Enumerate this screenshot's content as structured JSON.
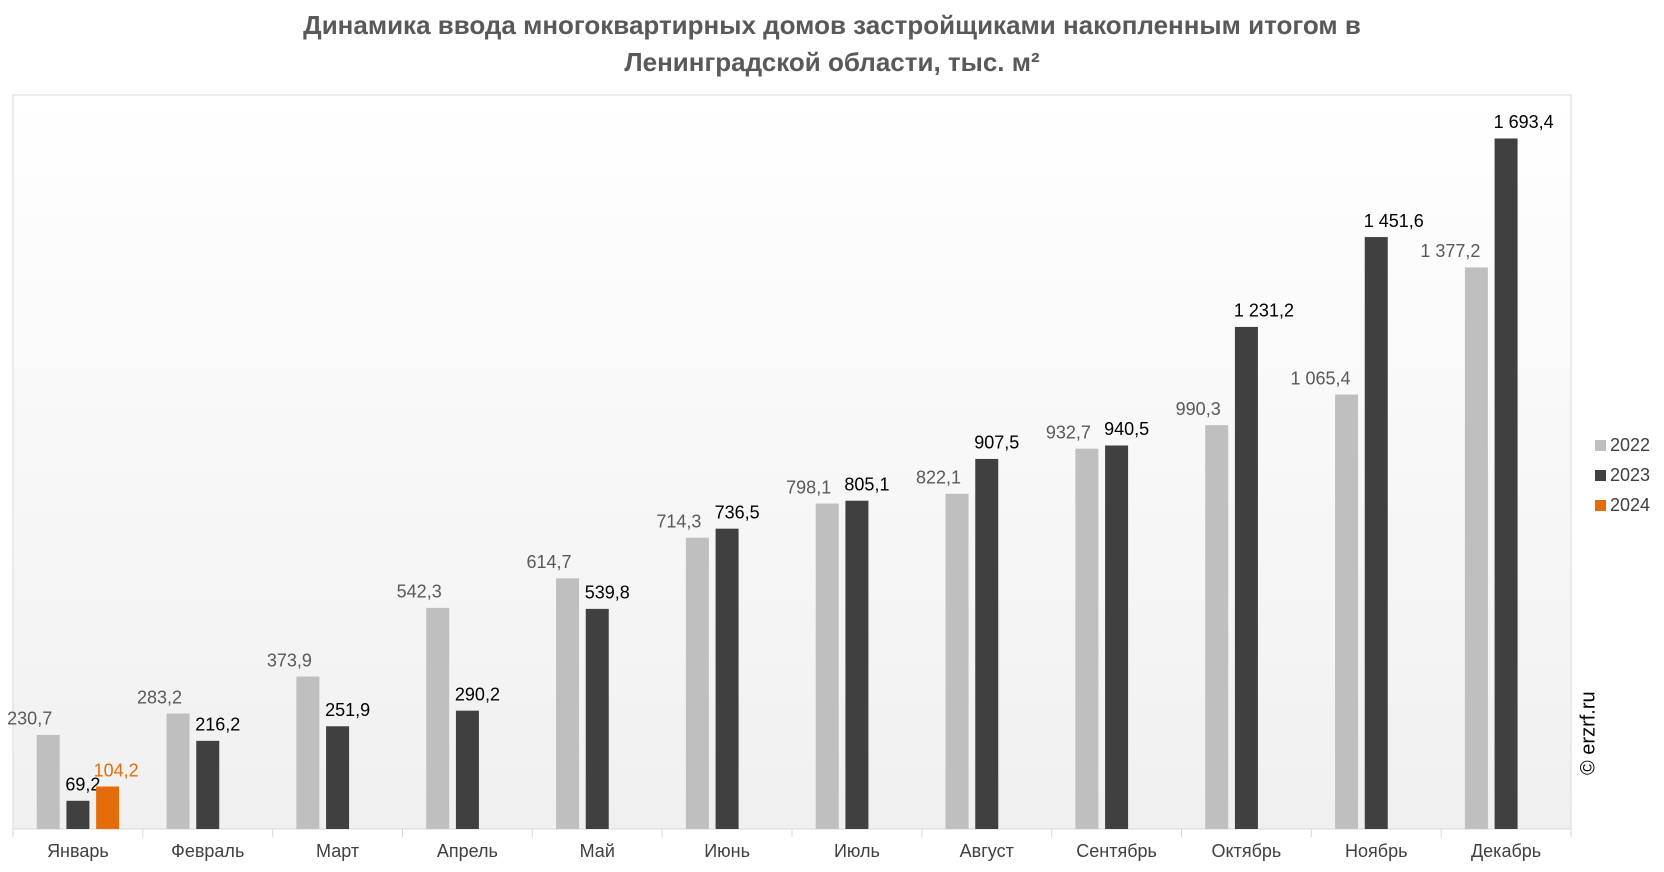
{
  "chart_data": {
    "type": "bar",
    "title": "Динамика ввода многоквартирных домов застройщиками накопленным итогом в",
    "subtitle": "Ленинградской области, тыс. м²",
    "categories": [
      "Январь",
      "Февраль",
      "Март",
      "Апрель",
      "Май",
      "Июнь",
      "Июль",
      "Август",
      "Сентябрь",
      "Октябрь",
      "Ноябрь",
      "Декабрь"
    ],
    "series": [
      {
        "name": "2022",
        "color": "#bfbfbf",
        "label_color": "#595959",
        "values": [
          230.7,
          283.2,
          373.9,
          542.3,
          614.7,
          714.3,
          798.1,
          822.1,
          932.7,
          990.3,
          1065.4,
          1377.2
        ],
        "value_labels": [
          "230,7",
          "283,2",
          "373,9",
          "542,3",
          "614,7",
          "714,3",
          "798,1",
          "822,1",
          "932,7",
          "990,3",
          "1 065,4",
          "1 377,2"
        ]
      },
      {
        "name": "2023",
        "color": "#404040",
        "label_color": "#000000",
        "values": [
          69.2,
          216.2,
          251.9,
          290.2,
          539.8,
          736.5,
          805.1,
          907.5,
          940.5,
          1231.2,
          1451.6,
          1693.4
        ],
        "value_labels": [
          "69,2",
          "216,2",
          "251,9",
          "290,2",
          "539,8",
          "736,5",
          "805,1",
          "907,5",
          "940,5",
          "1 231,2",
          "1 451,6",
          "1 693,4"
        ]
      },
      {
        "name": "2024",
        "color": "#e46c0a",
        "label_color": "#e46c0a",
        "values": [
          104.2,
          null,
          null,
          null,
          null,
          null,
          null,
          null,
          null,
          null,
          null,
          null
        ],
        "value_labels": [
          "104,2",
          null,
          null,
          null,
          null,
          null,
          null,
          null,
          null,
          null,
          null,
          null
        ]
      }
    ],
    "ylim": [
      0,
      1800
    ],
    "legend": "right",
    "watermark": "© erzrf.ru"
  }
}
